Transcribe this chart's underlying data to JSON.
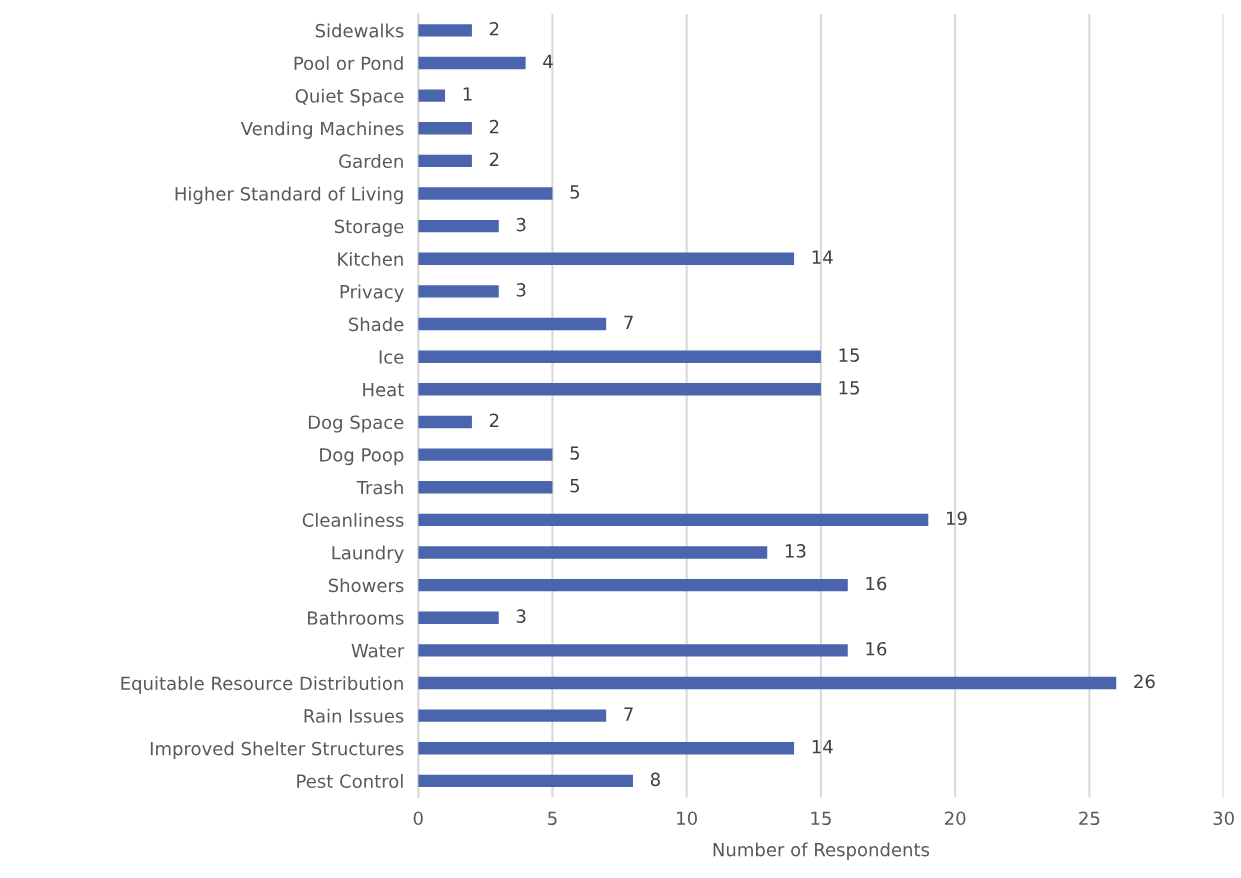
{
  "chart_data": {
    "type": "bar",
    "orientation": "horizontal",
    "xlabel": "Number of Respondents",
    "categories": [
      "Sidewalks",
      "Pool or Pond",
      "Quiet Space",
      "Vending Machines",
      "Garden",
      "Higher Standard of Living",
      "Storage",
      "Kitchen",
      "Privacy",
      "Shade",
      "Ice",
      "Heat",
      "Dog Space",
      "Dog Poop",
      "Trash",
      "Cleanliness",
      "Laundry",
      "Showers",
      "Bathrooms",
      "Water",
      "Equitable Resource Distribution",
      "Rain Issues",
      "Improved Shelter Structures",
      "Pest Control"
    ],
    "values": [
      2,
      4,
      1,
      2,
      2,
      5,
      3,
      14,
      3,
      7,
      15,
      15,
      2,
      5,
      5,
      19,
      13,
      16,
      3,
      16,
      26,
      7,
      14,
      8
    ],
    "color": "#4a65ad",
    "xlim": [
      0,
      30
    ],
    "xticks": [
      0,
      5,
      10,
      15,
      20,
      25,
      30
    ],
    "grid": "x",
    "data_labels": true
  }
}
